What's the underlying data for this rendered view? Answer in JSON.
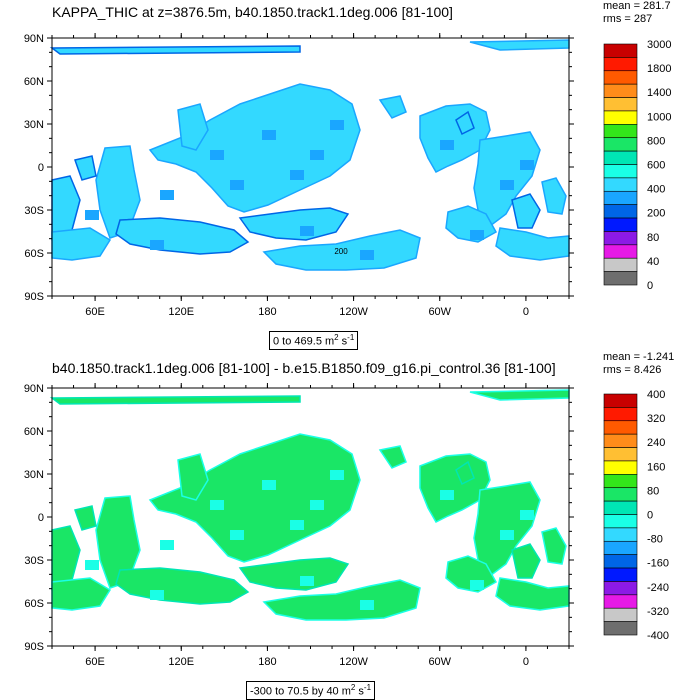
{
  "chart_data": [
    {
      "type": "heatmap",
      "title": "KAPPA_THIC at z=3876.5m, b40.1850.track1.1deg.006 [81-100]",
      "stats": {
        "mean": "mean = 281.7",
        "rms": "rms = 287"
      },
      "caption": "0 to 469.5 m",
      "caption_unit_exp": "2",
      "caption_suffix": " s",
      "caption_suffix_exp": "-1",
      "x_ticks": [
        "60E",
        "120E",
        "180",
        "120W",
        "60W",
        "0"
      ],
      "y_ticks": [
        "90N",
        "60N",
        "30N",
        "0",
        "30S",
        "60S",
        "90S"
      ],
      "colorbar": {
        "levels": [
          "3000",
          "1800",
          "1400",
          "1000",
          "800",
          "600",
          "400",
          "200",
          "80",
          "40",
          "0"
        ],
        "colors": [
          "#c80000",
          "#ff1a00",
          "#ff5a00",
          "#ff8c1a",
          "#ffbf33",
          "#ffff00",
          "#33e61a",
          "#1ae666",
          "#00e6b4",
          "#1affe6",
          "#33d9ff",
          "#1aa6ff",
          "#0066e6",
          "#0019ff",
          "#8c1ae6",
          "#e61ae6",
          "#c8c8c8",
          "#6e6e6e"
        ]
      },
      "annotation": "200",
      "fill_colors": {
        "main": "#33d9ff",
        "edge": "#1aa6ff",
        "dark": "#0066e6"
      }
    },
    {
      "type": "heatmap",
      "title": "b40.1850.track1.1deg.006 [81-100] - b.e15.B1850.f09_g16.pi_control.36 [81-100]",
      "stats": {
        "mean": "mean = -1.241",
        "rms": "rms = 8.426"
      },
      "caption": "-300 to 70.5 by 40 m",
      "caption_unit_exp": "2",
      "caption_suffix": " s",
      "caption_suffix_exp": "-1",
      "x_ticks": [
        "60E",
        "120E",
        "180",
        "120W",
        "60W",
        "0"
      ],
      "y_ticks": [
        "90N",
        "60N",
        "30N",
        "0",
        "30S",
        "60S",
        "90S"
      ],
      "colorbar": {
        "levels": [
          "400",
          "320",
          "240",
          "160",
          "80",
          "0",
          "-80",
          "-160",
          "-240",
          "-320",
          "-400"
        ],
        "colors": [
          "#c80000",
          "#ff1a00",
          "#ff5a00",
          "#ff8c1a",
          "#ffbf33",
          "#ffff00",
          "#33e61a",
          "#1ae666",
          "#00e6b4",
          "#1affe6",
          "#33d9ff",
          "#1aa6ff",
          "#0066e6",
          "#0019ff",
          "#8c1ae6",
          "#e61ae6",
          "#c8c8c8",
          "#6e6e6e"
        ]
      },
      "fill_colors": {
        "main": "#1ae666",
        "edge": "#1affe6",
        "dark": "#00e6b4"
      }
    }
  ]
}
